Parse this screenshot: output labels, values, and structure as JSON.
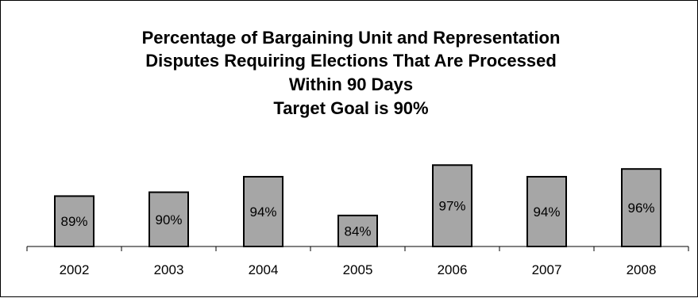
{
  "chart_data": {
    "type": "bar",
    "title_lines": [
      "Percentage of Bargaining Unit and Representation",
      "Disputes Requiring Elections That Are Processed",
      "Within 90 Days",
      "Target Goal is 90%"
    ],
    "categories": [
      "2002",
      "2003",
      "2004",
      "2005",
      "2006",
      "2007",
      "2008"
    ],
    "values": [
      89,
      90,
      94,
      84,
      97,
      94,
      96
    ],
    "data_labels": [
      "89%",
      "90%",
      "94%",
      "84%",
      "97%",
      "94%",
      "96%"
    ],
    "xlabel": "",
    "ylabel": "",
    "ylim": [
      76,
      100
    ],
    "y_axis_visible": false,
    "grid": false,
    "legend": "none",
    "colors": {
      "bar_fill": "#a6a6a6",
      "bar_stroke": "#000000",
      "axis": "#000000"
    }
  }
}
